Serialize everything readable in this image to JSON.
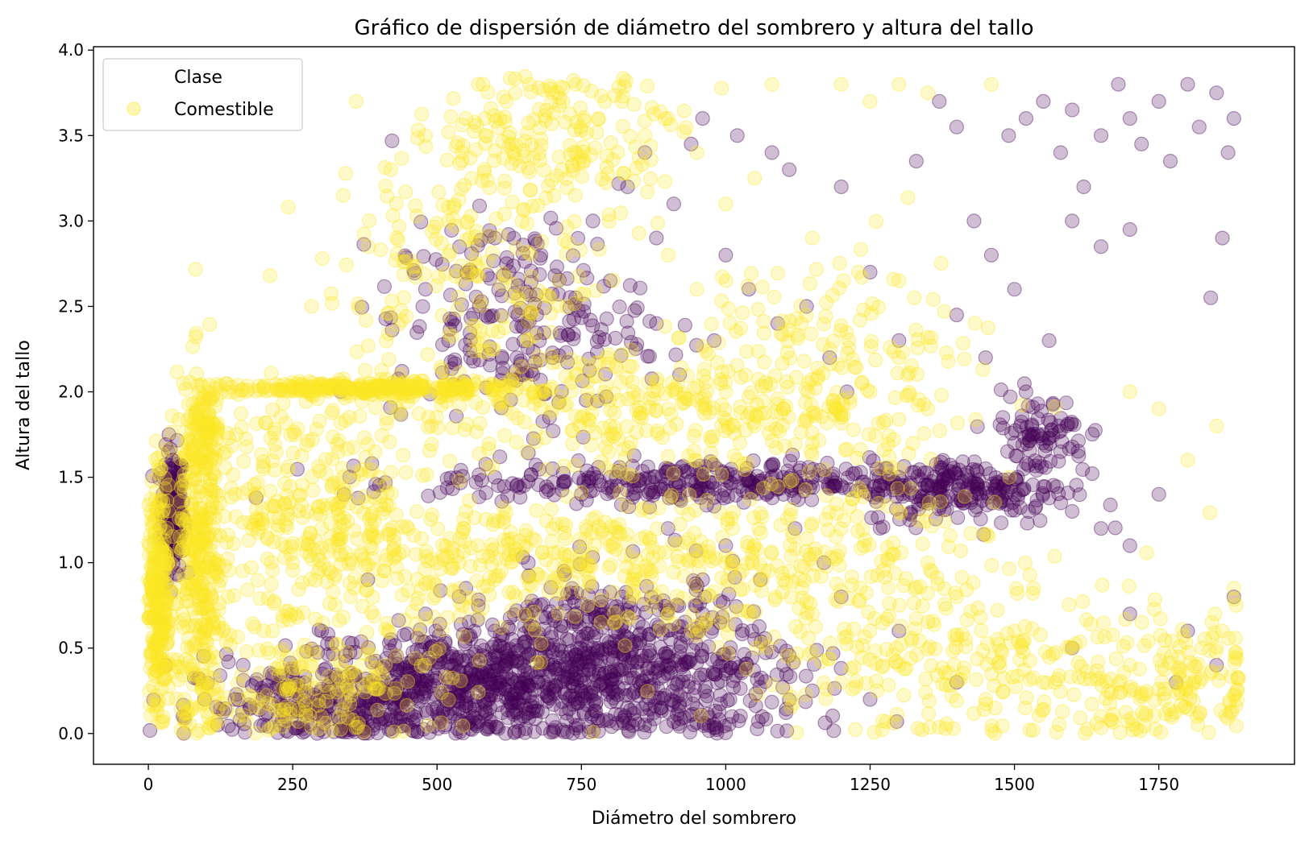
{
  "chart_data": {
    "type": "scatter",
    "title": "Gráfico de dispersión de diámetro del sombrero y altura del tallo",
    "xlabel": "Diámetro del sombrero",
    "ylabel": "Altura del tallo",
    "xlim": [
      -95,
      1985
    ],
    "ylim": [
      -0.18,
      4.02
    ],
    "xticks": [
      0,
      250,
      500,
      750,
      1000,
      1250,
      1500,
      1750
    ],
    "xtick_labels": [
      "0",
      "250",
      "500",
      "750",
      "1000",
      "1250",
      "1500",
      "1750"
    ],
    "yticks": [
      0.0,
      0.5,
      1.0,
      1.5,
      2.0,
      2.5,
      3.0,
      3.5,
      4.0
    ],
    "ytick_labels": [
      "0.0",
      "0.5",
      "1.0",
      "1.5",
      "2.0",
      "2.5",
      "3.0",
      "3.5",
      "4.0"
    ],
    "grid": false,
    "legend": {
      "title": "Clase",
      "position": "top-left",
      "entries": [
        {
          "label": "Comestible",
          "color": "#fde725"
        }
      ]
    },
    "series": [
      {
        "color": "#440154",
        "marker_alpha": 0.25,
        "points": [
          [
            40,
            1.5
          ],
          [
            45,
            1.35
          ],
          [
            35,
            1.2
          ],
          [
            50,
            1.45
          ],
          [
            42,
            1.1
          ],
          [
            55,
            1.3
          ],
          [
            30,
            0.4
          ],
          [
            60,
            0.1
          ],
          [
            120,
            0.05
          ],
          [
            150,
            0.2
          ],
          [
            200,
            0.05
          ],
          [
            230,
            0.3
          ],
          [
            260,
            0.15
          ],
          [
            300,
            0.6
          ],
          [
            350,
            0.25
          ],
          [
            380,
            0.9
          ],
          [
            420,
            0.55
          ],
          [
            450,
            0.3
          ],
          [
            480,
            0.7
          ],
          [
            500,
            0.15
          ],
          [
            520,
            0.45
          ],
          [
            550,
            0.85
          ],
          [
            580,
            0.2
          ],
          [
            600,
            0.6
          ],
          [
            620,
            0.35
          ],
          [
            650,
            0.1
          ],
          [
            680,
            0.75
          ],
          [
            700,
            0.4
          ],
          [
            720,
            0.95
          ],
          [
            750,
            0.25
          ],
          [
            780,
            0.65
          ],
          [
            800,
            0.5
          ],
          [
            820,
            0.8
          ],
          [
            850,
            0.3
          ],
          [
            880,
            0.6
          ],
          [
            900,
            0.45
          ],
          [
            930,
            0.2
          ],
          [
            960,
            0.7
          ],
          [
            1000,
            0.35
          ],
          [
            1050,
            0.55
          ],
          [
            1100,
            0.4
          ],
          [
            1150,
            0.25
          ],
          [
            480,
            2.6
          ],
          [
            520,
            2.3
          ],
          [
            560,
            2.7
          ],
          [
            600,
            2.9
          ],
          [
            640,
            2.45
          ],
          [
            680,
            2.8
          ],
          [
            700,
            2.2
          ],
          [
            740,
            2.55
          ],
          [
            770,
            3.0
          ],
          [
            800,
            2.65
          ],
          [
            830,
            3.2
          ],
          [
            860,
            3.4
          ],
          [
            880,
            2.9
          ],
          [
            910,
            3.1
          ],
          [
            940,
            3.45
          ],
          [
            960,
            3.6
          ],
          [
            1000,
            2.8
          ],
          [
            1020,
            3.5
          ],
          [
            1080,
            3.4
          ],
          [
            1110,
            3.3
          ],
          [
            1200,
            3.2
          ],
          [
            1250,
            2.7
          ],
          [
            1300,
            2.3
          ],
          [
            1330,
            3.35
          ],
          [
            1370,
            3.7
          ],
          [
            1400,
            3.55
          ],
          [
            1430,
            3.0
          ],
          [
            1460,
            2.8
          ],
          [
            1490,
            3.5
          ],
          [
            1520,
            3.6
          ],
          [
            1550,
            3.7
          ],
          [
            1580,
            3.4
          ],
          [
            1600,
            3.65
          ],
          [
            1620,
            3.2
          ],
          [
            1650,
            3.5
          ],
          [
            1680,
            3.8
          ],
          [
            1700,
            3.6
          ],
          [
            1720,
            3.45
          ],
          [
            1750,
            3.7
          ],
          [
            1770,
            3.35
          ],
          [
            1800,
            3.8
          ],
          [
            1820,
            3.55
          ],
          [
            1850,
            3.75
          ],
          [
            1870,
            3.4
          ],
          [
            1880,
            3.6
          ],
          [
            1860,
            2.9
          ],
          [
            1840,
            2.55
          ],
          [
            1700,
            2.95
          ],
          [
            1650,
            2.85
          ],
          [
            1600,
            3.0
          ],
          [
            1560,
            2.3
          ],
          [
            1500,
            2.6
          ],
          [
            1450,
            2.2
          ],
          [
            1400,
            2.45
          ],
          [
            600,
            1.5
          ],
          [
            650,
            1.45
          ],
          [
            700,
            1.55
          ],
          [
            750,
            1.4
          ],
          [
            800,
            1.5
          ],
          [
            850,
            1.45
          ],
          [
            900,
            1.55
          ],
          [
            950,
            1.4
          ],
          [
            1000,
            1.5
          ],
          [
            1050,
            1.45
          ],
          [
            1100,
            1.4
          ],
          [
            1150,
            1.5
          ],
          [
            1200,
            1.45
          ],
          [
            1250,
            1.4
          ],
          [
            1300,
            1.5
          ],
          [
            1350,
            1.45
          ],
          [
            1400,
            1.4
          ],
          [
            1450,
            1.55
          ],
          [
            1500,
            1.7
          ],
          [
            1530,
            1.8
          ],
          [
            1550,
            1.75
          ],
          [
            1580,
            1.65
          ],
          [
            1520,
            2.0
          ],
          [
            1480,
            1.85
          ],
          [
            1600,
            1.3
          ],
          [
            1650,
            1.2
          ],
          [
            1700,
            1.1
          ],
          [
            1750,
            1.4
          ],
          [
            1800,
            0.6
          ],
          [
            1850,
            0.4
          ],
          [
            1880,
            0.8
          ],
          [
            1780,
            0.3
          ],
          [
            1700,
            0.7
          ],
          [
            1600,
            0.5
          ],
          [
            1400,
            0.3
          ],
          [
            1300,
            0.6
          ],
          [
            1250,
            0.2
          ],
          [
            1200,
            0.8
          ],
          [
            1170,
            1.0
          ],
          [
            1120,
            1.2
          ],
          [
            1060,
            0.9
          ],
          [
            1000,
            1.1
          ],
          [
            960,
            0.9
          ],
          [
            900,
            1.2
          ],
          [
            880,
            2.4
          ],
          [
            920,
            2.1
          ],
          [
            980,
            2.3
          ],
          [
            1040,
            2.6
          ],
          [
            1090,
            2.4
          ],
          [
            1140,
            2.5
          ],
          [
            1180,
            2.2
          ],
          [
            1210,
            2.0
          ]
        ],
        "clusters": [
          {
            "x": 42,
            "y": 1.3,
            "sx": 10,
            "sy": 0.18,
            "n": 200
          },
          {
            "x": 580,
            "y": 0.28,
            "sx": 170,
            "sy": 0.17,
            "n": 650
          },
          {
            "x": 330,
            "y": 0.15,
            "sx": 120,
            "sy": 0.12,
            "n": 220
          },
          {
            "x": 800,
            "y": 0.55,
            "sx": 130,
            "sy": 0.2,
            "n": 300
          },
          {
            "x": 950,
            "y": 1.47,
            "sx": 230,
            "sy": 0.06,
            "n": 320
          },
          {
            "x": 1420,
            "y": 1.42,
            "sx": 90,
            "sy": 0.1,
            "n": 180
          },
          {
            "x": 1540,
            "y": 1.75,
            "sx": 45,
            "sy": 0.12,
            "n": 80
          },
          {
            "x": 640,
            "y": 2.4,
            "sx": 110,
            "sy": 0.3,
            "n": 220
          },
          {
            "x": 900,
            "y": 0.25,
            "sx": 120,
            "sy": 0.18,
            "n": 200
          }
        ]
      },
      {
        "name": "Comestible",
        "color": "#fde725",
        "marker_alpha": 0.25,
        "points": [
          [
            20,
            1.1
          ],
          [
            10,
            0.9
          ],
          [
            30,
            0.7
          ],
          [
            15,
            0.5
          ],
          [
            25,
            1.3
          ],
          [
            80,
            1.8
          ],
          [
            90,
            1.6
          ],
          [
            100,
            1.2
          ],
          [
            110,
            0.8
          ],
          [
            130,
            0.6
          ],
          [
            150,
            1.4
          ],
          [
            170,
            2.0
          ],
          [
            200,
            2.02
          ],
          [
            250,
            2.02
          ],
          [
            300,
            2.02
          ],
          [
            350,
            2.02
          ],
          [
            400,
            2.02
          ],
          [
            450,
            2.02
          ],
          [
            500,
            2.02
          ],
          [
            550,
            2.02
          ],
          [
            600,
            2.02
          ],
          [
            650,
            1.95
          ],
          [
            700,
            1.9
          ],
          [
            750,
            1.85
          ],
          [
            800,
            1.8
          ],
          [
            850,
            1.85
          ],
          [
            900,
            1.9
          ],
          [
            950,
            1.95
          ],
          [
            1000,
            2.0
          ],
          [
            1050,
            1.8
          ],
          [
            1100,
            1.9
          ],
          [
            1150,
            1.7
          ],
          [
            1200,
            1.85
          ],
          [
            1250,
            2.0
          ],
          [
            1300,
            2.2
          ],
          [
            1350,
            1.9
          ],
          [
            360,
            3.7
          ],
          [
            420,
            3.3
          ],
          [
            480,
            3.5
          ],
          [
            550,
            3.6
          ],
          [
            580,
            3.8
          ],
          [
            620,
            3.7
          ],
          [
            660,
            3.8
          ],
          [
            700,
            3.75
          ],
          [
            740,
            3.8
          ],
          [
            780,
            3.6
          ],
          [
            820,
            3.7
          ],
          [
            860,
            3.5
          ],
          [
            900,
            3.6
          ],
          [
            950,
            3.4
          ],
          [
            1080,
            3.8
          ],
          [
            1200,
            3.8
          ],
          [
            1250,
            3.7
          ],
          [
            1300,
            3.8
          ],
          [
            1350,
            3.75
          ],
          [
            1460,
            3.8
          ],
          [
            1050,
            3.25
          ],
          [
            1000,
            3.1
          ],
          [
            900,
            2.8
          ],
          [
            950,
            2.6
          ],
          [
            1150,
            2.9
          ],
          [
            1230,
            2.7
          ],
          [
            1300,
            2.65
          ],
          [
            1700,
            2.0
          ],
          [
            1750,
            1.9
          ],
          [
            1800,
            1.6
          ],
          [
            1850,
            1.8
          ],
          [
            1880,
            0.85
          ],
          [
            1860,
            0.6
          ],
          [
            1820,
            0.3
          ],
          [
            1760,
            0.2
          ],
          [
            1700,
            0.4
          ],
          [
            1650,
            0.1
          ],
          [
            1600,
            0.5
          ],
          [
            1550,
            0.3
          ],
          [
            1500,
            0.6
          ],
          [
            1450,
            0.2
          ],
          [
            1400,
            0.8
          ],
          [
            1350,
            1.0
          ],
          [
            1300,
            0.4
          ],
          [
            1250,
            0.6
          ],
          [
            1200,
            0.3
          ],
          [
            1150,
            0.7
          ],
          [
            1100,
            0.9
          ],
          [
            1050,
            1.1
          ],
          [
            1000,
            1.0
          ],
          [
            950,
            0.8
          ],
          [
            400,
            1.5
          ],
          [
            450,
            1.2
          ],
          [
            500,
            1.0
          ],
          [
            550,
            1.3
          ],
          [
            600,
            0.9
          ],
          [
            650,
            1.1
          ],
          [
            700,
            1.2
          ],
          [
            750,
            1.0
          ],
          [
            800,
            1.1
          ],
          [
            850,
            0.9
          ],
          [
            900,
            0.7
          ],
          [
            250,
            1.0
          ],
          [
            300,
            1.2
          ],
          [
            350,
            0.8
          ],
          [
            200,
            0.6
          ],
          [
            280,
            0.4
          ],
          [
            380,
            0.5
          ]
        ],
        "clusters": [
          {
            "x": 18,
            "y": 0.85,
            "sx": 10,
            "sy": 0.35,
            "n": 260
          },
          {
            "x": 90,
            "y": 0.9,
            "sx": 20,
            "sy": 0.55,
            "n": 320
          },
          {
            "x": 95,
            "y": 1.8,
            "sx": 22,
            "sy": 0.12,
            "n": 100
          },
          {
            "x": 290,
            "y": 1.3,
            "sx": 110,
            "sy": 0.35,
            "n": 300
          },
          {
            "x": 390,
            "y": 2.02,
            "sx": 120,
            "sy": 0.02,
            "n": 280
          },
          {
            "x": 720,
            "y": 3.5,
            "sx": 110,
            "sy": 0.2,
            "n": 170
          },
          {
            "x": 560,
            "y": 2.7,
            "sx": 120,
            "sy": 0.35,
            "n": 200
          },
          {
            "x": 880,
            "y": 1.9,
            "sx": 220,
            "sy": 0.18,
            "n": 300
          },
          {
            "x": 700,
            "y": 1.0,
            "sx": 240,
            "sy": 0.22,
            "n": 360
          },
          {
            "x": 1150,
            "y": 1.05,
            "sx": 180,
            "sy": 0.3,
            "n": 220
          },
          {
            "x": 1450,
            "y": 0.4,
            "sx": 200,
            "sy": 0.25,
            "n": 260
          },
          {
            "x": 1780,
            "y": 0.3,
            "sx": 90,
            "sy": 0.2,
            "n": 120
          },
          {
            "x": 1180,
            "y": 2.3,
            "sx": 120,
            "sy": 0.3,
            "n": 140
          },
          {
            "x": 300,
            "y": 0.3,
            "sx": 120,
            "sy": 0.2,
            "n": 180
          }
        ]
      }
    ]
  }
}
